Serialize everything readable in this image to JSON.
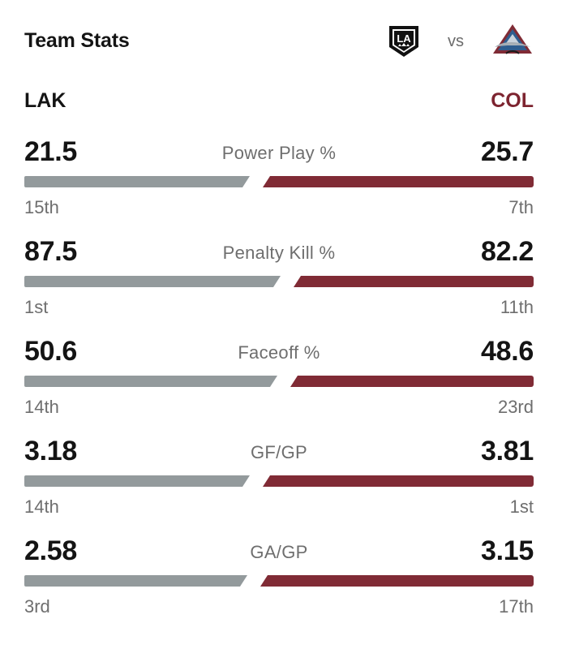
{
  "header": {
    "title": "Team Stats",
    "vs_label": "vs",
    "home_logo_icon": "la-kings-logo-icon",
    "away_logo_icon": "colorado-avalanche-logo-icon"
  },
  "teams": {
    "left": {
      "abbr": "LAK",
      "color": "#141414",
      "bar_color": "#939a9c"
    },
    "right": {
      "abbr": "COL",
      "color": "#7d2430",
      "bar_color": "#802b35"
    }
  },
  "stats": [
    {
      "label": "Power Play %",
      "left_value": "21.5",
      "right_value": "25.7",
      "left_rank": "15th",
      "right_rank": "7th",
      "left_share": 0.455,
      "right_share": 0.545
    },
    {
      "label": "Penalty Kill %",
      "left_value": "87.5",
      "right_value": "82.2",
      "left_rank": "1st",
      "right_rank": "11th",
      "left_share": 0.516,
      "right_share": 0.484
    },
    {
      "label": "Faceoff %",
      "left_value": "50.6",
      "right_value": "48.6",
      "left_rank": "14th",
      "right_rank": "23rd",
      "left_share": 0.51,
      "right_share": 0.49
    },
    {
      "label": "GF/GP",
      "left_value": "3.18",
      "right_value": "3.81",
      "left_rank": "14th",
      "right_rank": "1st",
      "left_share": 0.455,
      "right_share": 0.545
    },
    {
      "label": "GA/GP",
      "left_value": "2.58",
      "right_value": "3.15",
      "left_rank": "3rd",
      "right_rank": "17th",
      "left_share": 0.45,
      "right_share": 0.55
    }
  ]
}
